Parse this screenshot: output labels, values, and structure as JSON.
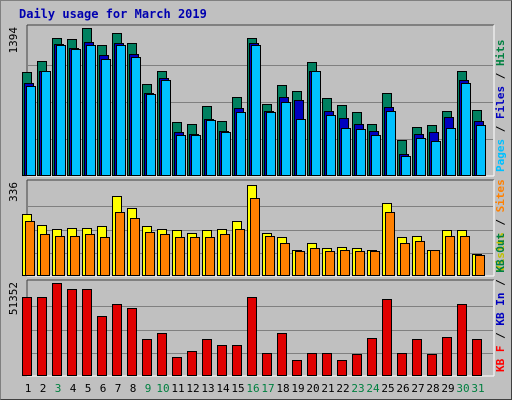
{
  "title": "Daily usage for March 2019",
  "chart_data": [
    {
      "type": "bar",
      "panel": "pages-files-hits",
      "categories": [
        "1",
        "2",
        "3",
        "4",
        "5",
        "6",
        "7",
        "8",
        "9",
        "10",
        "11",
        "12",
        "13",
        "14",
        "15",
        "16",
        "17",
        "18",
        "19",
        "20",
        "21",
        "22",
        "23",
        "24",
        "25",
        "26",
        "27",
        "28",
        "29",
        "30",
        "31"
      ],
      "max_label": "1394",
      "ylim": [
        0,
        1394
      ],
      "grid": true,
      "legend": [
        {
          "text": "Pages",
          "color": "#00c0ff"
        },
        {
          "text": " / ",
          "color": "#000000"
        },
        {
          "text": "Files",
          "color": "#0000c0"
        },
        {
          "text": " / ",
          "color": "#000000"
        },
        {
          "text": "Hits",
          "color": "#008040"
        }
      ],
      "series": [
        {
          "name": "Hits",
          "color": "#008060",
          "values": [
            980,
            1080,
            1300,
            1290,
            1390,
            1235,
            1350,
            1250,
            870,
            990,
            510,
            490,
            655,
            520,
            740,
            1300,
            680,
            860,
            800,
            1070,
            730,
            665,
            600,
            490,
            780,
            340,
            465,
            480,
            615,
            990,
            620
          ]
        },
        {
          "name": "Files",
          "color": "#0000c0",
          "values": [
            880,
            990,
            1245,
            1210,
            1260,
            1140,
            1250,
            1150,
            780,
            920,
            410,
            400,
            540,
            420,
            640,
            1250,
            610,
            745,
            720,
            990,
            610,
            550,
            490,
            420,
            650,
            210,
            400,
            410,
            560,
            900,
            520
          ]
        },
        {
          "name": "Pages",
          "color": "#00c0ff",
          "values": [
            850,
            990,
            1230,
            1200,
            1235,
            1100,
            1235,
            1120,
            770,
            900,
            385,
            390,
            530,
            410,
            600,
            1235,
            600,
            700,
            540,
            990,
            575,
            450,
            440,
            390,
            610,
            185,
            360,
            325,
            455,
            880,
            480
          ]
        }
      ]
    },
    {
      "type": "bar",
      "panel": "visits-sites",
      "categories": [
        "1",
        "2",
        "3",
        "4",
        "5",
        "6",
        "7",
        "8",
        "9",
        "10",
        "11",
        "12",
        "13",
        "14",
        "15",
        "16",
        "17",
        "18",
        "19",
        "20",
        "21",
        "22",
        "23",
        "24",
        "25",
        "26",
        "27",
        "28",
        "29",
        "30",
        "31"
      ],
      "max_label": "336",
      "ylim": [
        0,
        336
      ],
      "grid": true,
      "legend": [
        {
          "text": "Visits",
          "color": "#c0c000"
        },
        {
          "text": " / ",
          "color": "#000000"
        },
        {
          "text": "Sites",
          "color": "#ff8000"
        }
      ],
      "series": [
        {
          "name": "Visits",
          "color": "#ffff00",
          "values": [
            225,
            185,
            170,
            175,
            175,
            180,
            290,
            245,
            180,
            170,
            165,
            155,
            165,
            170,
            200,
            330,
            155,
            140,
            95,
            120,
            100,
            105,
            100,
            95,
            265,
            140,
            145,
            95,
            165,
            165,
            80
          ]
        },
        {
          "name": "Sites",
          "color": "#ff8000",
          "values": [
            200,
            150,
            145,
            145,
            150,
            140,
            230,
            210,
            160,
            150,
            140,
            140,
            140,
            150,
            170,
            280,
            145,
            120,
            90,
            100,
            90,
            95,
            90,
            90,
            230,
            120,
            125,
            95,
            145,
            145,
            75
          ]
        }
      ]
    },
    {
      "type": "bar",
      "panel": "kbytes",
      "categories": [
        "1",
        "2",
        "3",
        "4",
        "5",
        "6",
        "7",
        "8",
        "9",
        "10",
        "11",
        "12",
        "13",
        "14",
        "15",
        "16",
        "17",
        "18",
        "19",
        "20",
        "21",
        "22",
        "23",
        "24",
        "25",
        "26",
        "27",
        "28",
        "29",
        "30",
        "31"
      ],
      "max_label": "51352",
      "ylim": [
        0,
        51352
      ],
      "grid": true,
      "legend": [
        {
          "text": "KB F",
          "color": "#ff0000"
        },
        {
          "text": " / ",
          "color": "#000000"
        },
        {
          "text": "KB In",
          "color": "#0000c0"
        },
        {
          "text": " / ",
          "color": "#000000"
        },
        {
          "text": "KB Out",
          "color": "#008040"
        }
      ],
      "series": [
        {
          "name": "KB F",
          "color": "#e00000",
          "values": [
            43500,
            43800,
            51352,
            48300,
            47800,
            33000,
            39500,
            37800,
            20500,
            23500,
            10500,
            14000,
            20500,
            17300,
            17300,
            43800,
            12800,
            23800,
            9000,
            12500,
            12800,
            8800,
            12000,
            20900,
            42700,
            12800,
            20500,
            12000,
            21500,
            39600,
            20700
          ]
        }
      ],
      "x_label_colors": [
        "#000000",
        "#000000",
        "#008040",
        "#000000",
        "#000000",
        "#000000",
        "#000000",
        "#000000",
        "#008040",
        "#008040",
        "#000000",
        "#000000",
        "#000000",
        "#000000",
        "#000000",
        "#008040",
        "#008040",
        "#000000",
        "#000000",
        "#000000",
        "#000000",
        "#000000",
        "#008040",
        "#008040",
        "#000000",
        "#000000",
        "#000000",
        "#000000",
        "#000000",
        "#008040",
        "#008040"
      ]
    }
  ]
}
